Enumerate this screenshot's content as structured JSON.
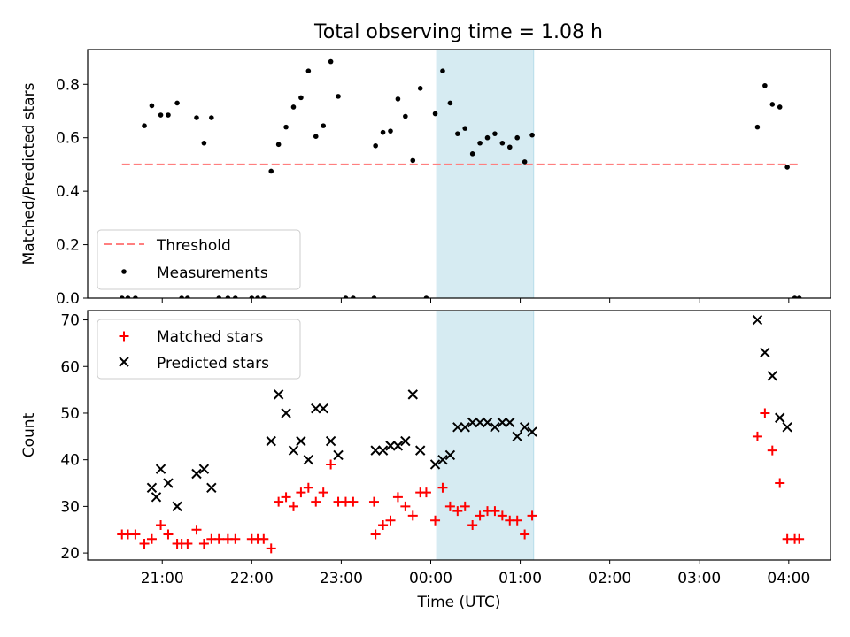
{
  "title": "Total observing time = 1.08 h",
  "colors": {
    "threshold": "#ff7f7f",
    "measurement": "#000000",
    "matched": "#ff0000",
    "predicted": "#000000",
    "shade": "#add8e6"
  },
  "chart_data": [
    {
      "type": "scatter",
      "title": "Total observing time = 1.08 h",
      "xlabel": "",
      "ylabel": "Matched/Predicted stars",
      "ylim": [
        0,
        0.93
      ],
      "yticks": [
        0.0,
        0.2,
        0.4,
        0.6,
        0.8
      ],
      "ytick_labels": [
        "0.0",
        "0.2",
        "0.4",
        "0.6",
        "0.8"
      ],
      "xlim": [
        "20:10",
        "04:28"
      ],
      "shaded_span": [
        "00:04",
        "01:09"
      ],
      "threshold": {
        "name": "Threshold",
        "y": 0.5,
        "x_range": [
          "20:33",
          "04:07"
        ]
      },
      "legend": {
        "location": "lower-left",
        "entries": [
          "Threshold",
          "Measurements"
        ]
      },
      "series": [
        {
          "name": "Measurements",
          "marker": "point",
          "points": [
            [
              "20:33",
              0.0
            ],
            [
              "20:37",
              0.0
            ],
            [
              "20:42",
              0.0
            ],
            [
              "20:48",
              0.645
            ],
            [
              "20:53",
              0.72
            ],
            [
              "20:59",
              0.685
            ],
            [
              "21:04",
              0.685
            ],
            [
              "21:10",
              0.73
            ],
            [
              "21:13",
              0.0
            ],
            [
              "21:17",
              0.0
            ],
            [
              "21:23",
              0.675
            ],
            [
              "21:28",
              0.58
            ],
            [
              "21:33",
              0.675
            ],
            [
              "21:38",
              0.0
            ],
            [
              "21:44",
              0.0
            ],
            [
              "21:49",
              0.0
            ],
            [
              "22:00",
              0.0
            ],
            [
              "22:04",
              0.0
            ],
            [
              "22:08",
              0.0
            ],
            [
              "22:13",
              0.475
            ],
            [
              "22:18",
              0.575
            ],
            [
              "22:23",
              0.64
            ],
            [
              "22:28",
              0.715
            ],
            [
              "22:33",
              0.75
            ],
            [
              "22:38",
              0.85
            ],
            [
              "22:43",
              0.605
            ],
            [
              "22:48",
              0.645
            ],
            [
              "22:53",
              0.885
            ],
            [
              "22:58",
              0.755
            ],
            [
              "23:03",
              0.0
            ],
            [
              "23:08",
              0.0
            ],
            [
              "23:22",
              0.0
            ],
            [
              "23:23",
              0.57
            ],
            [
              "23:28",
              0.62
            ],
            [
              "23:33",
              0.625
            ],
            [
              "23:38",
              0.745
            ],
            [
              "23:43",
              0.68
            ],
            [
              "23:48",
              0.515
            ],
            [
              "23:53",
              0.785
            ],
            [
              "23:57",
              0.0
            ],
            [
              "00:03",
              0.69
            ],
            [
              "00:08",
              0.85
            ],
            [
              "00:13",
              0.73
            ],
            [
              "00:18",
              0.615
            ],
            [
              "00:23",
              0.635
            ],
            [
              "00:28",
              0.54
            ],
            [
              "00:33",
              0.58
            ],
            [
              "00:38",
              0.6
            ],
            [
              "00:43",
              0.615
            ],
            [
              "00:48",
              0.58
            ],
            [
              "00:53",
              0.565
            ],
            [
              "00:58",
              0.6
            ],
            [
              "01:03",
              0.51
            ],
            [
              "01:08",
              0.61
            ],
            [
              "03:39",
              0.64
            ],
            [
              "03:44",
              0.795
            ],
            [
              "03:49",
              0.725
            ],
            [
              "03:54",
              0.715
            ],
            [
              "03:59",
              0.49
            ],
            [
              "04:04",
              0.0
            ],
            [
              "04:07",
              0.0
            ]
          ]
        }
      ]
    },
    {
      "type": "scatter",
      "title": "",
      "xlabel": "Time (UTC)",
      "ylabel": "Count",
      "ylim": [
        18.5,
        72
      ],
      "yticks": [
        20,
        30,
        40,
        50,
        60,
        70
      ],
      "ytick_labels": [
        "20",
        "30",
        "40",
        "50",
        "60",
        "70"
      ],
      "xlim": [
        "20:10",
        "04:28"
      ],
      "xticks": [
        "21:00",
        "22:00",
        "23:00",
        "00:00",
        "01:00",
        "02:00",
        "03:00",
        "04:00"
      ],
      "xtick_labels": [
        "21:00",
        "22:00",
        "23:00",
        "00:00",
        "01:00",
        "02:00",
        "03:00",
        "04:00"
      ],
      "shaded_span": [
        "00:04",
        "01:09"
      ],
      "legend": {
        "location": "upper-left",
        "entries": [
          "Matched stars",
          "Predicted stars"
        ]
      },
      "series": [
        {
          "name": "Matched stars",
          "marker": "plus",
          "points": [
            [
              "20:33",
              24
            ],
            [
              "20:37",
              24
            ],
            [
              "20:42",
              24
            ],
            [
              "20:48",
              22
            ],
            [
              "20:53",
              23
            ],
            [
              "20:59",
              26
            ],
            [
              "21:04",
              24
            ],
            [
              "21:10",
              22
            ],
            [
              "21:13",
              22
            ],
            [
              "21:17",
              22
            ],
            [
              "21:23",
              25
            ],
            [
              "21:28",
              22
            ],
            [
              "21:33",
              23
            ],
            [
              "21:38",
              23
            ],
            [
              "21:44",
              23
            ],
            [
              "21:49",
              23
            ],
            [
              "22:00",
              23
            ],
            [
              "22:04",
              23
            ],
            [
              "22:08",
              23
            ],
            [
              "22:13",
              21
            ],
            [
              "22:18",
              31
            ],
            [
              "22:23",
              32
            ],
            [
              "22:28",
              30
            ],
            [
              "22:33",
              33
            ],
            [
              "22:38",
              34
            ],
            [
              "22:43",
              31
            ],
            [
              "22:48",
              33
            ],
            [
              "22:53",
              39
            ],
            [
              "22:58",
              31
            ],
            [
              "23:03",
              31
            ],
            [
              "23:08",
              31
            ],
            [
              "23:22",
              31
            ],
            [
              "23:23",
              24
            ],
            [
              "23:28",
              26
            ],
            [
              "23:33",
              27
            ],
            [
              "23:38",
              32
            ],
            [
              "23:43",
              30
            ],
            [
              "23:48",
              28
            ],
            [
              "23:53",
              33
            ],
            [
              "23:57",
              33
            ],
            [
              "00:03",
              27
            ],
            [
              "00:08",
              34
            ],
            [
              "00:13",
              30
            ],
            [
              "00:18",
              29
            ],
            [
              "00:23",
              30
            ],
            [
              "00:28",
              26
            ],
            [
              "00:33",
              28
            ],
            [
              "00:38",
              29
            ],
            [
              "00:43",
              29
            ],
            [
              "00:48",
              28
            ],
            [
              "00:53",
              27
            ],
            [
              "00:58",
              27
            ],
            [
              "01:03",
              24
            ],
            [
              "01:08",
              28
            ],
            [
              "03:39",
              45
            ],
            [
              "03:44",
              50
            ],
            [
              "03:49",
              42
            ],
            [
              "03:54",
              35
            ],
            [
              "03:59",
              23
            ],
            [
              "04:04",
              23
            ],
            [
              "04:07",
              23
            ]
          ]
        },
        {
          "name": "Predicted stars",
          "marker": "x",
          "points": [
            [
              "20:53",
              34
            ],
            [
              "20:56",
              32
            ],
            [
              "20:59",
              38
            ],
            [
              "21:04",
              35
            ],
            [
              "21:10",
              30
            ],
            [
              "21:23",
              37
            ],
            [
              "21:28",
              38
            ],
            [
              "21:33",
              34
            ],
            [
              "22:13",
              44
            ],
            [
              "22:18",
              54
            ],
            [
              "22:23",
              50
            ],
            [
              "22:28",
              42
            ],
            [
              "22:33",
              44
            ],
            [
              "22:38",
              40
            ],
            [
              "22:43",
              51
            ],
            [
              "22:48",
              51
            ],
            [
              "22:53",
              44
            ],
            [
              "22:58",
              41
            ],
            [
              "23:23",
              42
            ],
            [
              "23:28",
              42
            ],
            [
              "23:33",
              43
            ],
            [
              "23:38",
              43
            ],
            [
              "23:43",
              44
            ],
            [
              "23:48",
              54
            ],
            [
              "23:53",
              42
            ],
            [
              "00:03",
              39
            ],
            [
              "00:08",
              40
            ],
            [
              "00:13",
              41
            ],
            [
              "00:18",
              47
            ],
            [
              "00:23",
              47
            ],
            [
              "00:28",
              48
            ],
            [
              "00:33",
              48
            ],
            [
              "00:38",
              48
            ],
            [
              "00:43",
              47
            ],
            [
              "00:48",
              48
            ],
            [
              "00:53",
              48
            ],
            [
              "00:58",
              45
            ],
            [
              "01:03",
              47
            ],
            [
              "01:08",
              46
            ],
            [
              "03:39",
              70
            ],
            [
              "03:44",
              63
            ],
            [
              "03:49",
              58
            ],
            [
              "03:54",
              49
            ],
            [
              "03:59",
              47
            ]
          ]
        }
      ]
    }
  ]
}
